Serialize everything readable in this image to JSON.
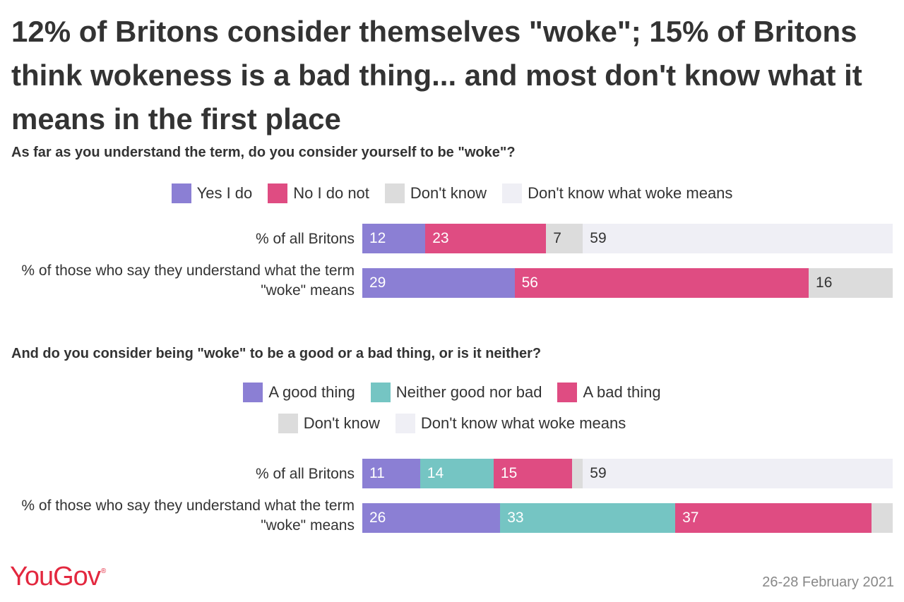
{
  "title": "12% of Britons consider themselves \"woke\"; 15% of Britons think wokeness is a bad thing... and most don't know what it means in the first place",
  "logo_text": "YouGov",
  "logo_mark": "®",
  "date": "26-28 February 2021",
  "chart_data": [
    {
      "type": "bar",
      "orientation": "horizontal",
      "stacked": true,
      "title": "As far as you understand the term, do you consider yourself to be \"woke\"?",
      "legend": [
        {
          "label": "Yes I do",
          "color": "#8b7fd4"
        },
        {
          "label": "No I do not",
          "color": "#df4c82"
        },
        {
          "label": "Don't know",
          "color": "#dcdcdc"
        },
        {
          "label": "Don't know what woke means",
          "color": "#efeff5"
        }
      ],
      "legend_rows": [
        [
          0,
          1,
          2,
          3
        ]
      ],
      "categories": [
        "% of all Britons",
        "% of those who say they understand what the term \"woke\" means"
      ],
      "series": [
        {
          "name": "Yes I do",
          "values": [
            12,
            29
          ]
        },
        {
          "name": "No I do not",
          "values": [
            23,
            56
          ]
        },
        {
          "name": "Don't know",
          "values": [
            7,
            16
          ]
        },
        {
          "name": "Don't know what woke means",
          "values": [
            59,
            null
          ]
        }
      ]
    },
    {
      "type": "bar",
      "orientation": "horizontal",
      "stacked": true,
      "title": "And do you consider being \"woke\" to be a good or a bad thing, or is it neither?",
      "legend": [
        {
          "label": "A good thing",
          "color": "#8b7fd4"
        },
        {
          "label": "Neither good nor bad",
          "color": "#75c5c3"
        },
        {
          "label": "A bad thing",
          "color": "#df4c82"
        },
        {
          "label": "Don't know",
          "color": "#dcdcdc"
        },
        {
          "label": "Don't know what woke means",
          "color": "#efeff5"
        }
      ],
      "legend_rows": [
        [
          0,
          1,
          2
        ],
        [
          3,
          4
        ]
      ],
      "categories": [
        "% of all Britons",
        "% of those who say they understand what the term \"woke\" means"
      ],
      "series": [
        {
          "name": "A good thing",
          "values": [
            11,
            26
          ]
        },
        {
          "name": "Neither good nor bad",
          "values": [
            14,
            33
          ]
        },
        {
          "name": "A bad thing",
          "values": [
            15,
            37
          ]
        },
        {
          "name": "Don't know",
          "values": [
            2,
            4
          ]
        },
        {
          "name": "Don't know what woke means",
          "values": [
            59,
            null
          ]
        }
      ]
    }
  ]
}
